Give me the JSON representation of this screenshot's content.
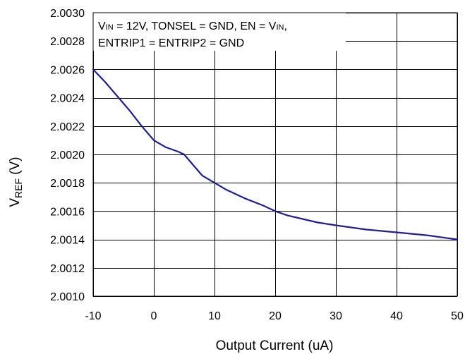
{
  "chart_data": {
    "type": "line",
    "title": "",
    "xlabel": "Output Current (uA)",
    "ylabel": {
      "main": "V",
      "sub": "REF",
      "unit": "(V)"
    },
    "xlim": [
      -10,
      50
    ],
    "ylim": [
      2.001,
      2.003
    ],
    "xticks": [
      -10,
      0,
      10,
      20,
      30,
      40,
      50
    ],
    "yticks": [
      2.001,
      2.0012,
      2.0014,
      2.0016,
      2.0018,
      2.002,
      2.0022,
      2.0024,
      2.0026,
      2.0028,
      2.003
    ],
    "xtick_labels": [
      "-10",
      "0",
      "10",
      "20",
      "30",
      "40",
      "50"
    ],
    "ytick_labels": [
      "2.0010",
      "2.0012",
      "2.0014",
      "2.0016",
      "2.0018",
      "2.0020",
      "2.0022",
      "2.0024",
      "2.0026",
      "2.0028",
      "2.0030"
    ],
    "grid": true,
    "line_color": "#1f1f8f",
    "series": [
      {
        "x": [
          -10,
          -8,
          -6,
          -4,
          -2,
          0,
          2,
          4,
          5,
          6,
          8,
          10,
          12,
          15,
          18,
          20,
          22,
          25,
          27,
          30,
          35,
          40,
          45,
          50
        ],
        "values": [
          2.0026,
          2.00251,
          2.00241,
          2.00231,
          2.0022,
          2.0021,
          2.00205,
          2.00202,
          2.002,
          2.00195,
          2.00185,
          2.0018,
          2.00175,
          2.00169,
          2.00164,
          2.0016,
          2.00157,
          2.00154,
          2.00152,
          2.0015,
          2.00147,
          2.00145,
          2.00143,
          2.0014
        ]
      }
    ],
    "annotation": {
      "line1": [
        {
          "t": "V"
        },
        {
          "t": "IN",
          "sub": true
        },
        {
          "t": " = 12V, TONSEL = GND, EN = V"
        },
        {
          "t": "IN",
          "sub": true
        },
        {
          "t": ","
        }
      ],
      "line2": [
        {
          "t": "ENTRIP1 = ENTRIP2 = GND"
        }
      ]
    }
  }
}
